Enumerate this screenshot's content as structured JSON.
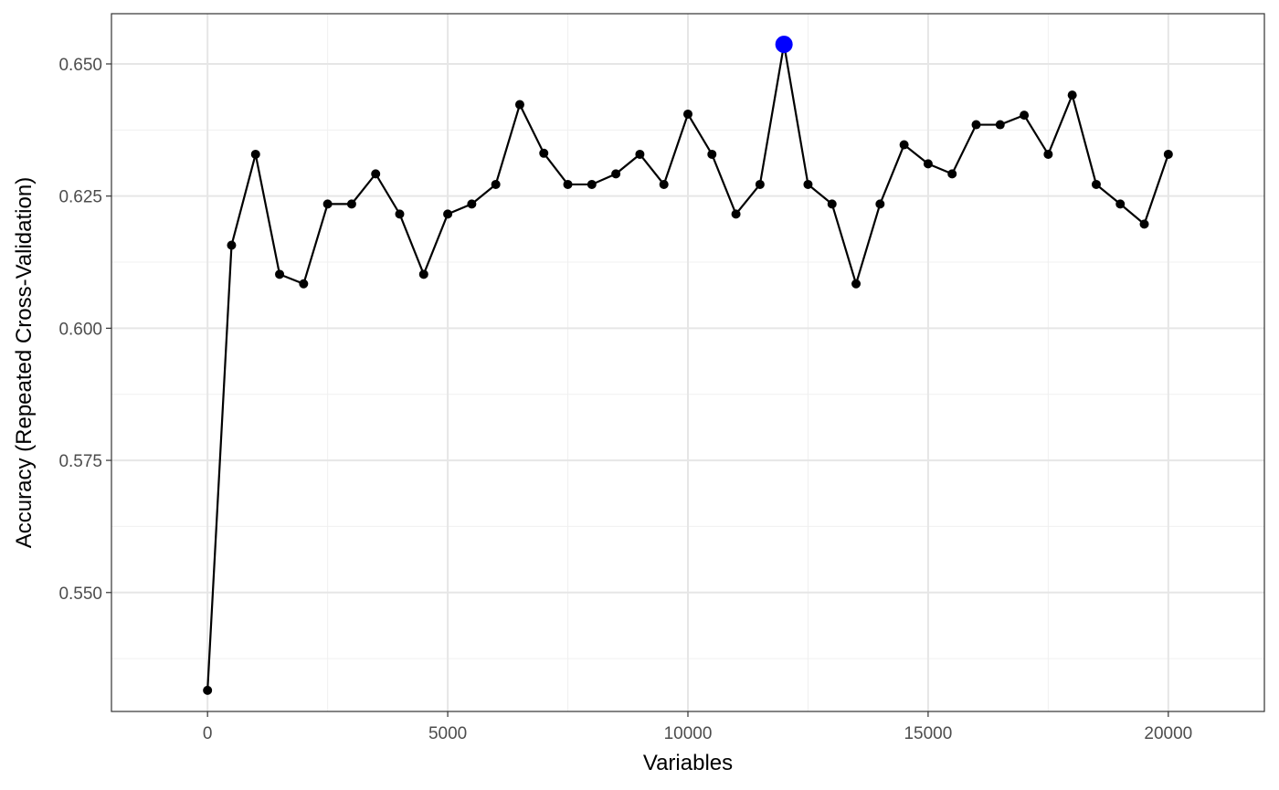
{
  "chart_data": {
    "type": "line",
    "xlabel": "Variables",
    "ylabel": "Accuracy (Repeated Cross-Validation)",
    "xlim": [
      -2000,
      22000
    ],
    "ylim": [
      0.5275,
      0.6595
    ],
    "x_ticks": [
      0,
      5000,
      10000,
      15000,
      20000
    ],
    "y_ticks": [
      0.55,
      0.575,
      0.6,
      0.625,
      0.65
    ],
    "x_tick_labels": [
      "0",
      "5000",
      "10000",
      "15000",
      "20000"
    ],
    "y_tick_labels": [
      "0.550",
      "0.575",
      "0.600",
      "0.625",
      "0.650"
    ],
    "grid": true,
    "line_color": "#000000",
    "point_color": "#000000",
    "highlight_color": "#0000ff",
    "highlight_x": 12000,
    "series": [
      {
        "x": [
          0,
          500,
          1000,
          1500,
          2000,
          2500,
          3000,
          3500,
          4000,
          4500,
          5000,
          5500,
          6000,
          6500,
          7000,
          7500,
          8000,
          8500,
          9000,
          9500,
          10000,
          10500,
          11000,
          11500,
          12000,
          12500,
          13000,
          13500,
          14000,
          14500,
          15000,
          15500,
          16000,
          16500,
          17000,
          17500,
          18000,
          18500,
          19000,
          19500,
          20000
        ],
        "values": [
          0.5315,
          0.6157,
          0.6329,
          0.6102,
          0.6084,
          0.6235,
          0.6235,
          0.6292,
          0.6216,
          0.6102,
          0.6216,
          0.6235,
          0.6272,
          0.6423,
          0.6331,
          0.6272,
          0.6272,
          0.6292,
          0.6329,
          0.6272,
          0.6405,
          0.6329,
          0.6216,
          0.6272,
          0.6537,
          0.6272,
          0.6235,
          0.6084,
          0.6235,
          0.6347,
          0.6311,
          0.6292,
          0.6385,
          0.6385,
          0.6403,
          0.6329,
          0.6441,
          0.6272,
          0.6235,
          0.6197,
          0.6329
        ]
      }
    ]
  }
}
